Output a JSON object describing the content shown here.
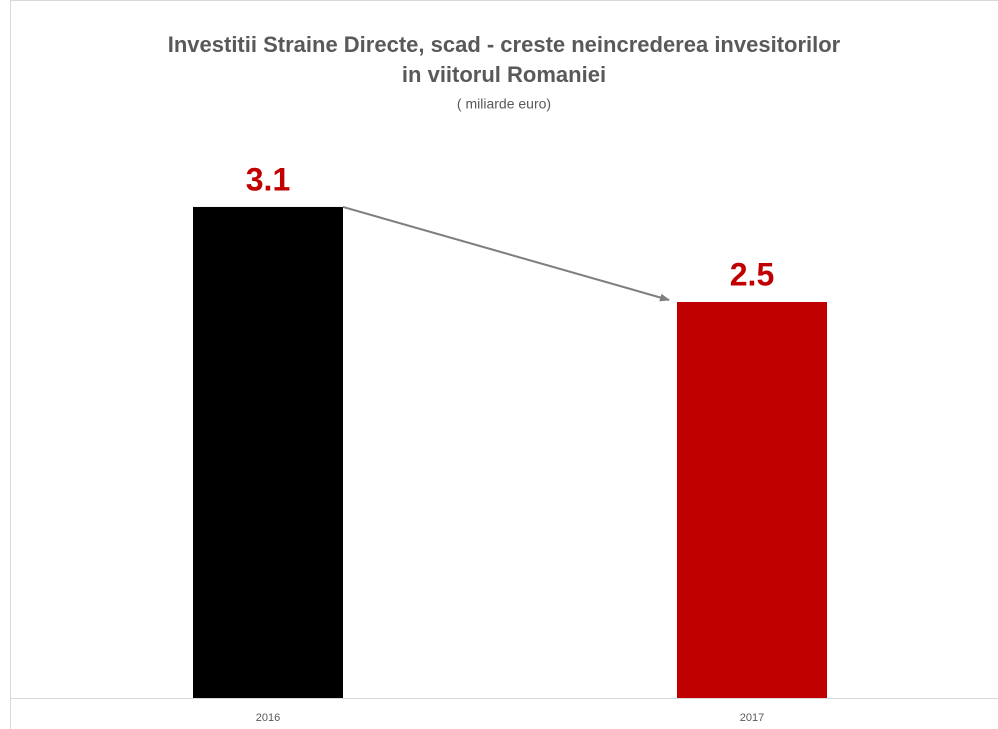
{
  "chart_data": {
    "type": "bar",
    "title": [
      "Investitii Straine Directe, scad - creste neincrederea invesitorilor",
      "in viitorul Romaniei"
    ],
    "subtitle": "( miliarde euro)",
    "categories": [
      "2016",
      "2017"
    ],
    "values": [
      3.1,
      2.5
    ],
    "colors": [
      "#000000",
      "#c00000"
    ],
    "value_label_color": "#c00000"
  }
}
